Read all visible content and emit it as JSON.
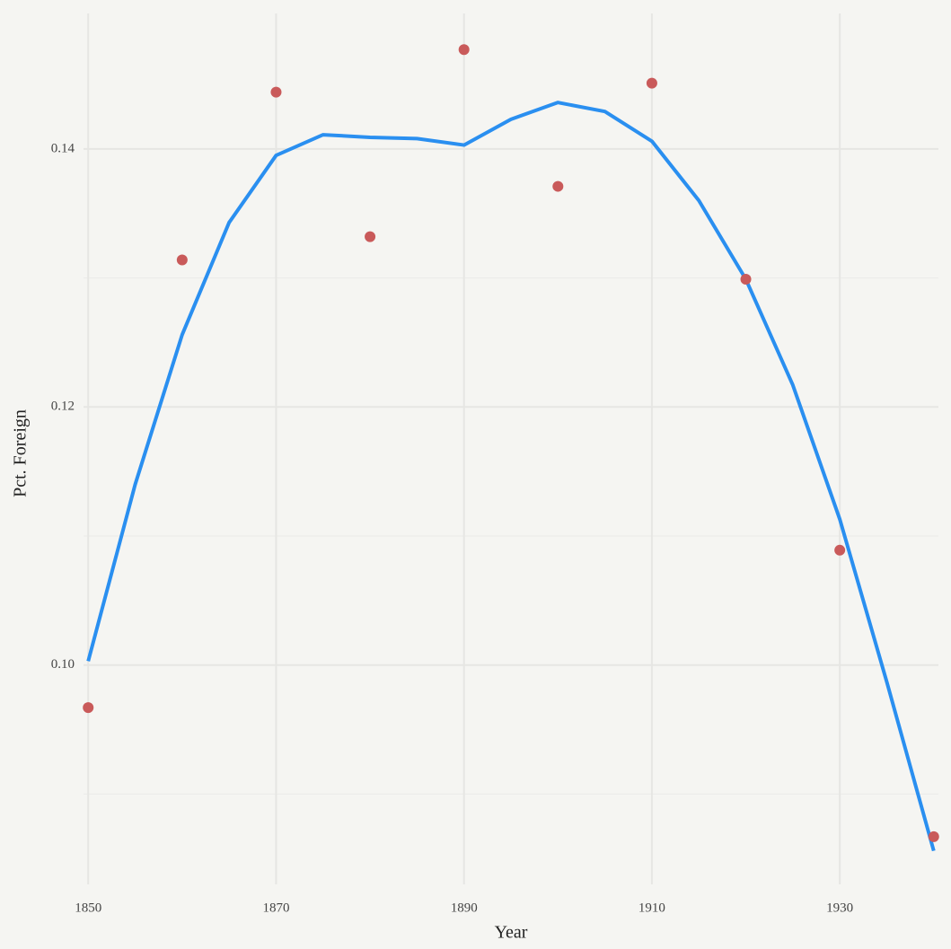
{
  "chart_data": {
    "type": "scatter",
    "xlabel": "Year",
    "ylabel": "Pct. Foreign",
    "xlim": [
      1849.5,
      1940.5
    ],
    "ylim": [
      0.083,
      0.1505
    ],
    "xticks": [
      1850,
      1870,
      1890,
      1910,
      1930
    ],
    "yticks": [
      {
        "value": 0.1,
        "label": "0.10"
      },
      0.12,
      0.14
    ],
    "yminorticks": [
      0.09,
      0.11,
      0.13
    ],
    "grid": true,
    "series": [
      {
        "type": "scatter",
        "color": "#c95a5a",
        "x": [
          1850,
          1860,
          1870,
          1880,
          1890,
          1900,
          1910,
          1920,
          1930,
          1940
        ],
        "values": [
          0.0967,
          0.1314,
          0.1444,
          0.1332,
          0.1477,
          0.1371,
          0.1451,
          0.1299,
          0.1089,
          0.0867
        ]
      },
      {
        "type": "line",
        "color": "#2a8ff0",
        "x": [
          1850,
          1855,
          1860,
          1865,
          1870,
          1875,
          1880,
          1885,
          1890,
          1895,
          1900,
          1905,
          1910,
          1915,
          1920,
          1925,
          1930,
          1935,
          1940
        ],
        "values": [
          0.1003,
          0.114,
          0.1256,
          0.1343,
          0.1395,
          0.1411,
          0.1409,
          0.1408,
          0.1403,
          0.1423,
          0.1436,
          0.1429,
          0.1406,
          0.136,
          0.1299,
          0.1217,
          0.1113,
          0.0987,
          0.0856
        ]
      }
    ]
  }
}
